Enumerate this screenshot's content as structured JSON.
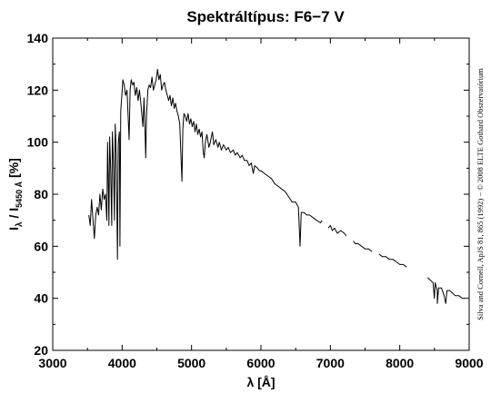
{
  "chart_data": {
    "type": "line",
    "title": "Spektráltípus: F6−7 V",
    "xlabel": "λ [Å]",
    "ylabel": {
      "symbol": "I",
      "sub1": "λ",
      "mid": " / I",
      "sub2": "5450 Å",
      "unit": " [%]"
    },
    "credit": "Silva and Cornell, ApJS 81, 865 (1992) − © 2008 ELTE Gothard Obszervatórium",
    "xlim": [
      3000,
      9000
    ],
    "ylim": [
      20,
      140
    ],
    "xticks": [
      3000,
      4000,
      5000,
      6000,
      7000,
      8000,
      9000
    ],
    "yticks": [
      20,
      40,
      60,
      80,
      100,
      120,
      140
    ],
    "grid": false,
    "line_color": "#000000",
    "series": [
      {
        "segments": [
          [
            [
              3520,
              72
            ],
            [
              3540,
              68
            ],
            [
              3560,
              78
            ],
            [
              3580,
              70
            ],
            [
              3600,
              63
            ],
            [
              3620,
              72
            ],
            [
              3640,
              75
            ],
            [
              3660,
              72
            ],
            [
              3680,
              80
            ],
            [
              3700,
              74
            ],
            [
              3720,
              82
            ],
            [
              3740,
              78
            ],
            [
              3760,
              80
            ],
            [
              3780,
              70
            ],
            [
              3790,
              100
            ],
            [
              3800,
              85
            ],
            [
              3810,
              68
            ],
            [
              3820,
              102
            ],
            [
              3835,
              90
            ],
            [
              3850,
              68
            ],
            [
              3860,
              104
            ],
            [
              3875,
              92
            ],
            [
              3889,
              70
            ],
            [
              3900,
              107
            ],
            [
              3915,
              96
            ],
            [
              3933,
              55
            ],
            [
              3945,
              100
            ],
            [
              3960,
              104
            ],
            [
              3968,
              60
            ],
            [
              3980,
              112
            ],
            [
              3995,
              118
            ],
            [
              4010,
              124
            ],
            [
              4030,
              122
            ],
            [
              4050,
              118
            ],
            [
              4070,
              120
            ],
            [
              4101,
              101
            ],
            [
              4115,
              120
            ],
            [
              4130,
              124
            ],
            [
              4150,
              122
            ],
            [
              4170,
              123
            ],
            [
              4190,
              118
            ],
            [
              4210,
              121
            ],
            [
              4230,
              116
            ],
            [
              4250,
              120
            ],
            [
              4270,
              115
            ],
            [
              4300,
              106
            ],
            [
              4315,
              117
            ],
            [
              4330,
              104
            ],
            [
              4340,
              94
            ],
            [
              4350,
              110
            ],
            [
              4370,
              120
            ],
            [
              4390,
              122
            ],
            [
              4410,
              121
            ],
            [
              4430,
              125
            ],
            [
              4450,
              120
            ],
            [
              4470,
              122
            ],
            [
              4490,
              124
            ],
            [
              4510,
              128
            ],
            [
              4530,
              124
            ],
            [
              4550,
              126
            ],
            [
              4570,
              120
            ],
            [
              4590,
              122
            ],
            [
              4610,
              123
            ],
            [
              4630,
              120
            ],
            [
              4650,
              118
            ],
            [
              4670,
              116
            ],
            [
              4690,
              118
            ],
            [
              4710,
              114
            ],
            [
              4730,
              117
            ],
            [
              4750,
              113
            ],
            [
              4770,
              115
            ],
            [
              4790,
              112
            ],
            [
              4810,
              110
            ],
            [
              4830,
              107
            ],
            [
              4861,
              85
            ],
            [
              4875,
              105
            ],
            [
              4890,
              111
            ],
            [
              4910,
              110
            ],
            [
              4930,
              108
            ],
            [
              4950,
              111
            ],
            [
              4970,
              107
            ],
            [
              4990,
              109
            ],
            [
              5010,
              106
            ],
            [
              5030,
              108
            ],
            [
              5050,
              104
            ],
            [
              5070,
              107
            ],
            [
              5090,
              103
            ],
            [
              5110,
              105
            ],
            [
              5130,
              102
            ],
            [
              5150,
              104
            ],
            [
              5170,
              96
            ],
            [
              5183,
              94
            ],
            [
              5200,
              100
            ],
            [
              5220,
              103
            ],
            [
              5250,
              98
            ],
            [
              5270,
              100
            ],
            [
              5300,
              104
            ],
            [
              5320,
              99
            ],
            [
              5350,
              101
            ],
            [
              5380,
              98
            ],
            [
              5400,
              100
            ],
            [
              5430,
              97
            ],
            [
              5460,
              99
            ],
            [
              5500,
              97
            ],
            [
              5530,
              98
            ],
            [
              5560,
              96
            ],
            [
              5600,
              97
            ],
            [
              5630,
              95
            ],
            [
              5660,
              96
            ],
            [
              5700,
              94
            ],
            [
              5730,
              95
            ],
            [
              5760,
              93
            ],
            [
              5800,
              93
            ],
            [
              5830,
              91
            ],
            [
              5860,
              92
            ],
            [
              5890,
              88
            ],
            [
              5910,
              91
            ],
            [
              5950,
              90
            ],
            [
              5980,
              89
            ],
            [
              6000,
              89
            ],
            [
              6050,
              88
            ],
            [
              6100,
              87
            ],
            [
              6150,
              86
            ],
            [
              6200,
              84
            ],
            [
              6250,
              83
            ],
            [
              6300,
              82
            ],
            [
              6350,
              81
            ],
            [
              6400,
              79
            ],
            [
              6450,
              77
            ],
            [
              6500,
              77
            ],
            [
              6540,
              75
            ],
            [
              6563,
              60
            ],
            [
              6580,
              73
            ],
            [
              6620,
              73
            ],
            [
              6660,
              72
            ],
            [
              6700,
              72
            ],
            [
              6750,
              71
            ],
            [
              6800,
              70
            ],
            [
              6860,
              69
            ],
            [
              6880,
              70
            ]
          ],
          [
            [
              6970,
              67
            ],
            [
              7000,
              68
            ],
            [
              7030,
              66
            ],
            [
              7060,
              67
            ],
            [
              7100,
              65
            ],
            [
              7150,
              66
            ],
            [
              7200,
              65
            ],
            [
              7230,
              64
            ]
          ],
          [
            [
              7330,
              62
            ],
            [
              7360,
              61
            ],
            [
              7400,
              61
            ],
            [
              7450,
              60
            ],
            [
              7500,
              59
            ],
            [
              7550,
              59
            ],
            [
              7600,
              58
            ]
          ],
          [
            [
              7700,
              57
            ],
            [
              7750,
              56
            ],
            [
              7800,
              56
            ],
            [
              7850,
              55
            ],
            [
              7900,
              55
            ],
            [
              7950,
              54
            ],
            [
              8000,
              53
            ],
            [
              8050,
              53
            ],
            [
              8100,
              52
            ]
          ],
          [
            [
              8400,
              48
            ],
            [
              8440,
              47
            ],
            [
              8480,
              46
            ],
            [
              8498,
              40
            ],
            [
              8510,
              46
            ],
            [
              8540,
              43
            ],
            [
              8542,
              38
            ],
            [
              8560,
              44
            ],
            [
              8600,
              44
            ],
            [
              8640,
              41
            ],
            [
              8662,
              38
            ],
            [
              8680,
              43
            ],
            [
              8720,
              43
            ],
            [
              8760,
              42
            ],
            [
              8800,
              41
            ],
            [
              8850,
              41
            ],
            [
              8900,
              40
            ],
            [
              8930,
              40
            ]
          ]
        ]
      }
    ]
  }
}
